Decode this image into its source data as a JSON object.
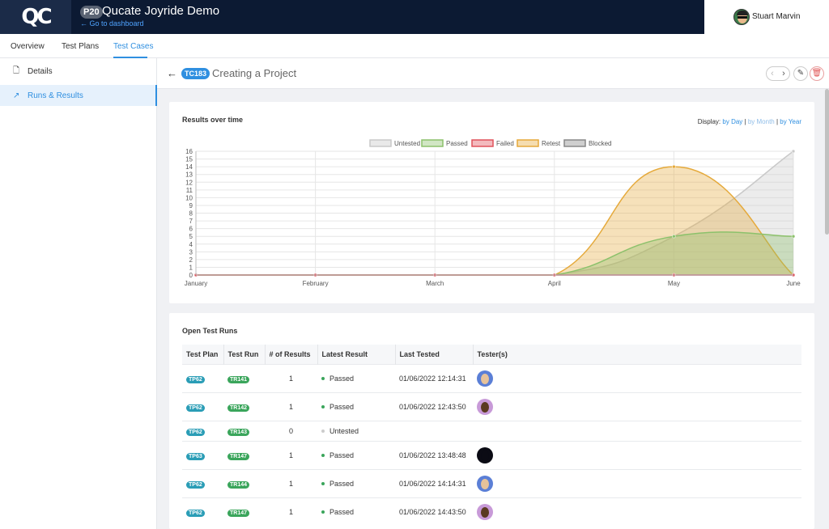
{
  "app": {
    "logo_text": "QC",
    "project_badge": "P20",
    "project_name": "Qucate Joyride Demo",
    "go_dashboard": "← Go to dashboard",
    "user_name": "Stuart Marvin"
  },
  "tabs": [
    {
      "label": "Overview"
    },
    {
      "label": "Test Plans"
    },
    {
      "label": "Test Cases"
    }
  ],
  "sidebar": {
    "items": [
      {
        "label": "Details",
        "icon": "document-icon"
      },
      {
        "label": "Runs & Results",
        "icon": "trend-icon"
      }
    ]
  },
  "case": {
    "badge": "TC183",
    "title": "Creating a Project"
  },
  "results_card": {
    "title": "Results over time",
    "display_label": "Display:",
    "by_day": "by Day",
    "by_month": "by Month",
    "by_year": "by Year",
    "sep": "|"
  },
  "chart_data": {
    "type": "area",
    "title": "Results over time",
    "categories": [
      "January",
      "February",
      "March",
      "April",
      "May",
      "June"
    ],
    "ylim": [
      0,
      16
    ],
    "y_ticks": [
      0,
      1,
      2,
      3,
      4,
      5,
      6,
      7,
      8,
      9,
      10,
      11,
      12,
      13,
      14,
      15,
      16
    ],
    "grid": true,
    "legend_position": "top",
    "series": [
      {
        "name": "Untested",
        "values": [
          0,
          0,
          0,
          0,
          5,
          16
        ],
        "color": "#c9c9c9"
      },
      {
        "name": "Passed",
        "values": [
          0,
          0,
          0,
          0,
          5,
          5
        ],
        "color": "#8cc16b"
      },
      {
        "name": "Failed",
        "values": [
          0,
          0,
          0,
          0,
          0,
          0
        ],
        "color": "#e0535c"
      },
      {
        "name": "Retest",
        "values": [
          0,
          0,
          0,
          0,
          14,
          0
        ],
        "color": "#e5a93a"
      },
      {
        "name": "Blocked",
        "values": [
          0,
          0,
          0,
          0,
          0,
          0
        ],
        "color": "#888888"
      }
    ]
  },
  "runs_card": {
    "title": "Open Test Runs",
    "columns": [
      "Test Plan",
      "Test Run",
      "# of Results",
      "Latest Result",
      "Last Tested",
      "Tester(s)"
    ],
    "rows": [
      {
        "plan": "TP62",
        "run": "TR141",
        "count": "1",
        "result": "Passed",
        "result_color": "#3aa55b",
        "tested": "01/06/2022 12:14:31",
        "tester": "blue-avatar"
      },
      {
        "plan": "TP62",
        "run": "TR142",
        "count": "1",
        "result": "Passed",
        "result_color": "#3aa55b",
        "tested": "01/06/2022 12:43:50",
        "tester": "purple-avatar"
      },
      {
        "plan": "TP62",
        "run": "TR143",
        "count": "0",
        "result": "Untested",
        "result_color": "#cccccc",
        "tested": "",
        "tester": ""
      },
      {
        "plan": "TP63",
        "run": "TR147",
        "count": "1",
        "result": "Passed",
        "result_color": "#3aa55b",
        "tested": "01/06/2022 13:48:48",
        "tester": "dark-avatar"
      },
      {
        "plan": "TP62",
        "run": "TR144",
        "count": "1",
        "result": "Passed",
        "result_color": "#3aa55b",
        "tested": "01/06/2022 14:14:31",
        "tester": "blue-avatar"
      },
      {
        "plan": "TP62",
        "run": "TR147",
        "count": "1",
        "result": "Passed",
        "result_color": "#3aa55b",
        "tested": "01/06/2022 14:43:50",
        "tester": "purple-avatar"
      }
    ]
  }
}
